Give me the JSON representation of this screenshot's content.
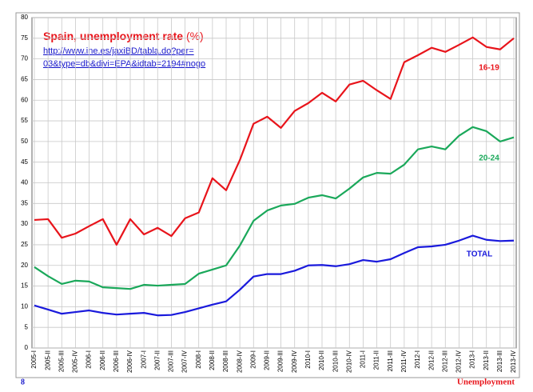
{
  "chart_data": {
    "type": "line",
    "title": "Spain, unemployment rate",
    "title_unit": "(%)",
    "source_lines": [
      "http://www.ine.es/jaxiBD/tabla.do?per=",
      "03&type=db&divi=EPA&idtab=2194#nogo"
    ],
    "categories": [
      "2005-I",
      "2005-II",
      "2005-III",
      "2005-IV",
      "2006-I",
      "2006-II",
      "2006-III",
      "2006-IV",
      "2007-I",
      "2007-II",
      "2007-III",
      "2007-IV",
      "2008-I",
      "2008-II",
      "2008-III",
      "2008-IV",
      "2009-I",
      "2009-II",
      "2009-III",
      "2009-IV",
      "2010-I",
      "2010-II",
      "2010-III",
      "2010-IV",
      "2011-I",
      "2011-II",
      "2011-III",
      "2011-IV",
      "2012-I",
      "2012-II",
      "2012-III",
      "2012-IV",
      "2013-I",
      "2013-II",
      "2013-III",
      "2013-IV"
    ],
    "series": [
      {
        "name": "16-19",
        "color": "#e8141b",
        "values": [
          31.0,
          31.2,
          26.7,
          27.7,
          29.5,
          31.2,
          25.0,
          31.2,
          27.5,
          29.1,
          27.1,
          31.4,
          32.8,
          41.1,
          38.2,
          45.5,
          54.3,
          56.0,
          53.3,
          57.4,
          59.3,
          61.8,
          59.7,
          63.8,
          64.7,
          62.4,
          60.3,
          69.2,
          70.9,
          72.7,
          71.7,
          73.4,
          75.2,
          72.9,
          72.3,
          75.0
        ]
      },
      {
        "name": "20-24",
        "color": "#1aa85a",
        "values": [
          19.6,
          17.4,
          15.5,
          16.3,
          16.1,
          14.7,
          14.5,
          14.3,
          15.3,
          15.1,
          15.3,
          15.5,
          18.0,
          19.0,
          20.0,
          24.8,
          30.8,
          33.3,
          34.5,
          34.9,
          36.4,
          37.0,
          36.2,
          38.6,
          41.3,
          42.4,
          42.2,
          44.4,
          48.1,
          48.8,
          48.1,
          51.4,
          53.5,
          52.5,
          50.0,
          51.0
        ]
      },
      {
        "name": "TOTAL",
        "color": "#1a1adc",
        "values": [
          10.3,
          9.3,
          8.3,
          8.7,
          9.1,
          8.5,
          8.1,
          8.3,
          8.5,
          7.9,
          8.0,
          8.7,
          9.6,
          10.5,
          11.3,
          14.1,
          17.3,
          17.9,
          17.9,
          18.7,
          20.0,
          20.1,
          19.8,
          20.3,
          21.3,
          20.9,
          21.5,
          23.0,
          24.4,
          24.6,
          25.0,
          26.0,
          27.2,
          26.2,
          25.9,
          26.0
        ]
      }
    ],
    "ylim": [
      0,
      80
    ],
    "yticks": [
      0,
      5,
      10,
      15,
      20,
      25,
      30,
      35,
      40,
      45,
      50,
      55,
      60,
      65,
      70,
      75,
      80
    ],
    "grid": true,
    "page_number": "8",
    "footer": "Unemployment"
  }
}
